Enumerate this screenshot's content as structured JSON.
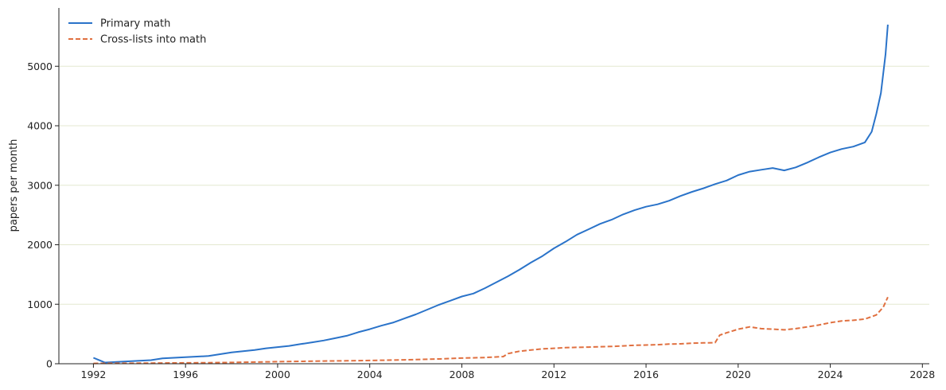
{
  "chart_data": {
    "type": "line",
    "title": "",
    "xlabel": "",
    "ylabel": "papers per month",
    "xlim": [
      1990.5,
      2028.3
    ],
    "ylim": [
      0,
      5980
    ],
    "x_ticks": [
      1992,
      1996,
      2000,
      2004,
      2008,
      2012,
      2016,
      2020,
      2024,
      2028
    ],
    "y_ticks": [
      0,
      1000,
      2000,
      3000,
      4000,
      5000
    ],
    "grid": "horizontal",
    "legend_position": "top-left",
    "series": [
      {
        "name": "Primary math",
        "color": "#2a73c9",
        "style": "solid",
        "x": [
          1992.0,
          1992.5,
          1993.0,
          1993.5,
          1994.0,
          1994.5,
          1995.0,
          1995.5,
          1996.0,
          1996.5,
          1997.0,
          1997.5,
          1998.0,
          1998.5,
          1999.0,
          1999.5,
          2000.0,
          2000.5,
          2001.0,
          2001.5,
          2002.0,
          2002.5,
          2003.0,
          2003.5,
          2004.0,
          2004.5,
          2005.0,
          2005.5,
          2006.0,
          2006.5,
          2007.0,
          2007.5,
          2008.0,
          2008.5,
          2009.0,
          2009.5,
          2010.0,
          2010.5,
          2011.0,
          2011.5,
          2012.0,
          2012.5,
          2013.0,
          2013.5,
          2014.0,
          2014.5,
          2015.0,
          2015.5,
          2016.0,
          2016.5,
          2017.0,
          2017.5,
          2018.0,
          2018.5,
          2019.0,
          2019.5,
          2020.0,
          2020.5,
          2021.0,
          2021.5,
          2022.0,
          2022.5,
          2023.0,
          2023.5,
          2024.0,
          2024.5,
          2025.0,
          2025.5,
          2025.8,
          2026.0,
          2026.2,
          2026.4,
          2026.5
        ],
        "values": [
          100,
          20,
          30,
          40,
          50,
          60,
          90,
          100,
          110,
          120,
          130,
          160,
          190,
          210,
          230,
          260,
          280,
          300,
          330,
          360,
          390,
          430,
          470,
          530,
          580,
          640,
          690,
          760,
          830,
          910,
          990,
          1060,
          1130,
          1180,
          1270,
          1370,
          1470,
          1580,
          1700,
          1810,
          1940,
          2050,
          2170,
          2260,
          2350,
          2420,
          2510,
          2580,
          2640,
          2680,
          2740,
          2820,
          2890,
          2950,
          3020,
          3080,
          3170,
          3230,
          3260,
          3290,
          3250,
          3300,
          3380,
          3470,
          3550,
          3610,
          3650,
          3720,
          3900,
          4200,
          4550,
          5200,
          5700
        ]
      },
      {
        "name": "Cross-lists into math",
        "color": "#e07040",
        "style": "dashed",
        "x": [
          1992.0,
          1993.0,
          1994.0,
          1995.0,
          1996.0,
          1997.0,
          1998.0,
          1999.0,
          2000.0,
          2001.0,
          2002.0,
          2003.0,
          2004.0,
          2005.0,
          2006.0,
          2007.0,
          2008.0,
          2009.0,
          2009.8,
          2010.0,
          2010.5,
          2011.0,
          2011.5,
          2012.0,
          2012.5,
          2013.0,
          2013.5,
          2014.0,
          2014.5,
          2015.0,
          2015.5,
          2016.0,
          2016.5,
          2017.0,
          2017.5,
          2018.0,
          2018.5,
          2019.0,
          2019.2,
          2019.5,
          2020.0,
          2020.5,
          2021.0,
          2021.5,
          2022.0,
          2022.5,
          2023.0,
          2023.5,
          2024.0,
          2024.5,
          2025.0,
          2025.5,
          2026.0,
          2026.3,
          2026.5
        ],
        "values": [
          5,
          8,
          10,
          12,
          15,
          18,
          22,
          28,
          35,
          40,
          45,
          50,
          55,
          62,
          70,
          80,
          95,
          105,
          120,
          170,
          210,
          230,
          250,
          260,
          270,
          275,
          280,
          285,
          290,
          300,
          310,
          315,
          320,
          330,
          335,
          345,
          350,
          355,
          480,
          520,
          580,
          620,
          590,
          580,
          570,
          590,
          620,
          650,
          690,
          720,
          730,
          750,
          820,
          950,
          1120
        ]
      }
    ]
  }
}
